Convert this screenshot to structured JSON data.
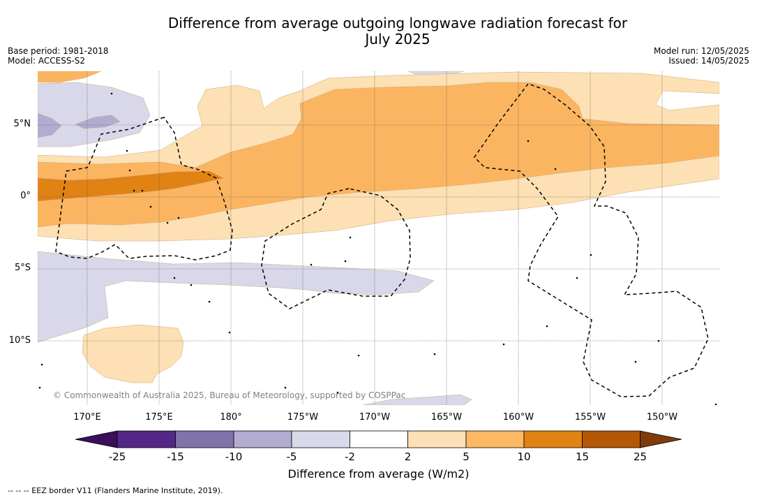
{
  "title": {
    "line1": "Difference from average outgoing longwave radiation forecast for",
    "line2": "July 2025"
  },
  "meta": {
    "base_period": "Base period: 1981-2018",
    "model": "Model: ACCESS-S2",
    "model_run": "Model run: 12/05/2025",
    "issued": "Issued: 14/05/2025"
  },
  "map": {
    "lat_labels": [
      "5°N",
      "0°",
      "5°S",
      "10°S"
    ],
    "lon_labels": [
      "170°E",
      "175°E",
      "180°",
      "175°W",
      "170°W",
      "165°W",
      "160°W",
      "155°W",
      "150°W"
    ],
    "copyright": "© Commonwealth of Australia 2025, Bureau of Meteorology, supported by COSPPac",
    "border_style": "dashed",
    "colors": {
      "pos_2_5": "#fde0b3",
      "pos_5_10": "#fbb561",
      "pos_10_15": "#e08214",
      "neg_5_2": "#d8d8ea",
      "neg_10_5": "#b2abd2"
    }
  },
  "colorbar": {
    "title": "Difference from average (W/m2)",
    "tick_labels": [
      "-25",
      "-15",
      "-10",
      "-5",
      "-2",
      "2",
      "5",
      "10",
      "15",
      "25"
    ],
    "colors": [
      "#3b0f5a",
      "#542788",
      "#8073ac",
      "#b2abd2",
      "#d8daeb",
      "#ffffff",
      "#fee0b6",
      "#fdb863",
      "#e08214",
      "#b35806",
      "#7f3b08"
    ]
  },
  "footnote": "--  --  -- EEZ border V11 (Flanders Marine Institute, 2019)."
}
